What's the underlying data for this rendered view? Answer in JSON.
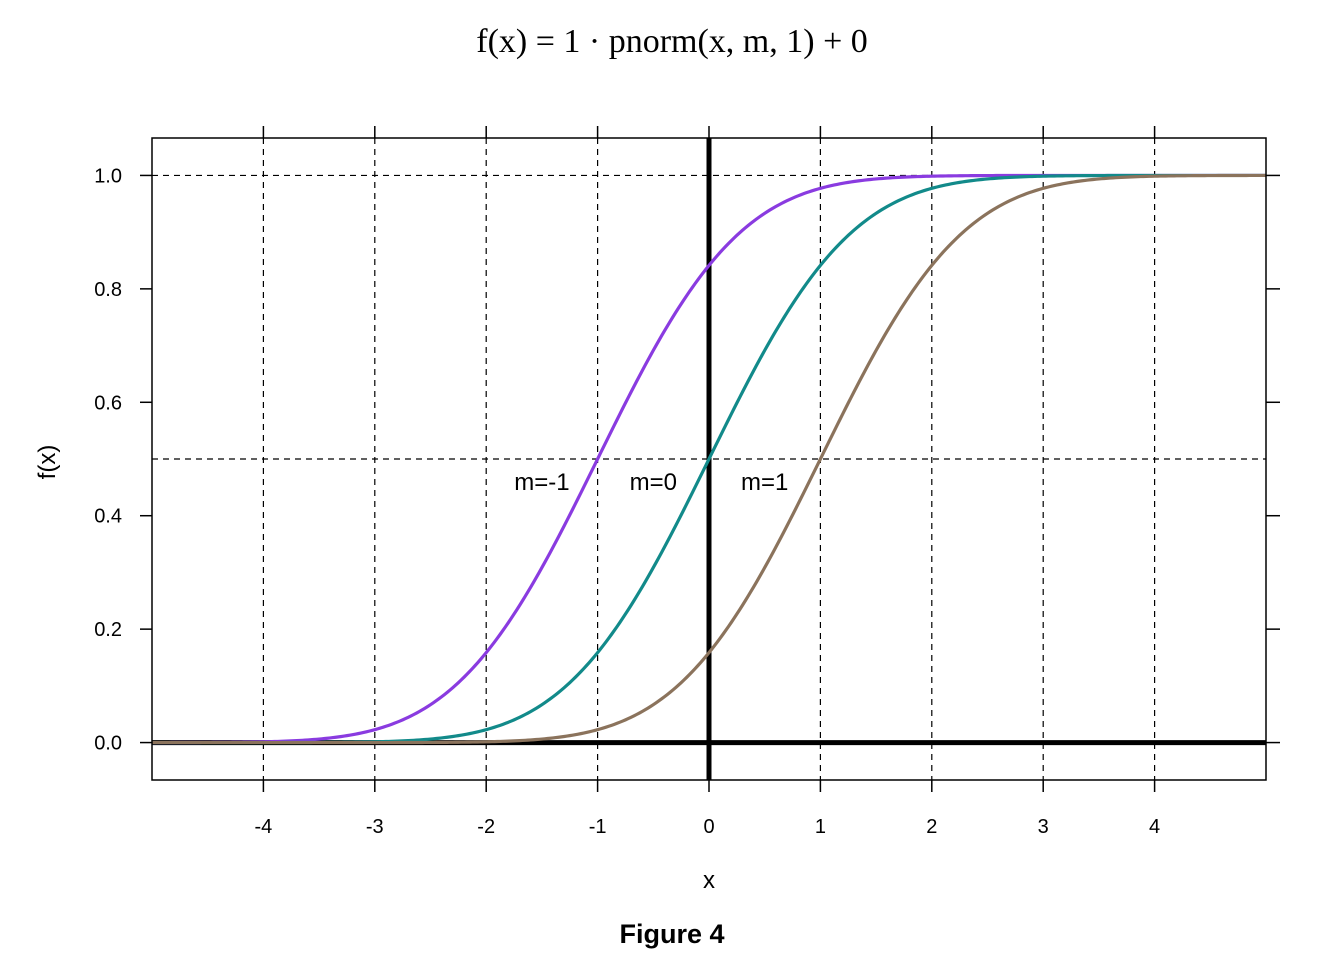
{
  "figure": {
    "title": "f(x) = 1 · pnorm(x, m, 1) + 0",
    "caption": "Figure 4"
  },
  "chart_data": {
    "type": "line",
    "function": "pnorm",
    "xlabel": "x",
    "ylabel": "f(x)",
    "xlim": [
      -5,
      5
    ],
    "ylim": [
      -0.066,
      1.066
    ],
    "xticks": [
      -4,
      -3,
      -2,
      -1,
      0,
      1,
      2,
      3,
      4
    ],
    "xtick_labels": [
      "-4",
      "-3",
      "-2",
      "-1",
      "0",
      "1",
      "2",
      "3",
      "4"
    ],
    "yticks": [
      0.0,
      0.2,
      0.4,
      0.6,
      0.8,
      1.0
    ],
    "ytick_labels": [
      "0.0",
      "0.2",
      "0.4",
      "0.6",
      "0.8",
      "1.0"
    ],
    "grid": {
      "vertical": [
        -4,
        -3,
        -2,
        -1,
        1,
        2,
        3,
        4
      ],
      "horizontal": [
        0.5,
        1.0
      ],
      "style": "dashed"
    },
    "reference_lines": {
      "x": 0,
      "y": 0
    },
    "series": [
      {
        "label": "m=-1",
        "mean": -1,
        "sd": 1,
        "scale": 1,
        "shift": 0,
        "color": "#8a3be0",
        "label_at": {
          "x": -1.5,
          "y": 0.445
        }
      },
      {
        "label": "m=0",
        "mean": 0,
        "sd": 1,
        "scale": 1,
        "shift": 0,
        "color": "#128a8a",
        "label_at": {
          "x": -0.5,
          "y": 0.445
        }
      },
      {
        "label": "m=1",
        "mean": 1,
        "sd": 1,
        "scale": 1,
        "shift": 0,
        "color": "#8b735c",
        "label_at": {
          "x": 0.5,
          "y": 0.445
        }
      }
    ]
  }
}
